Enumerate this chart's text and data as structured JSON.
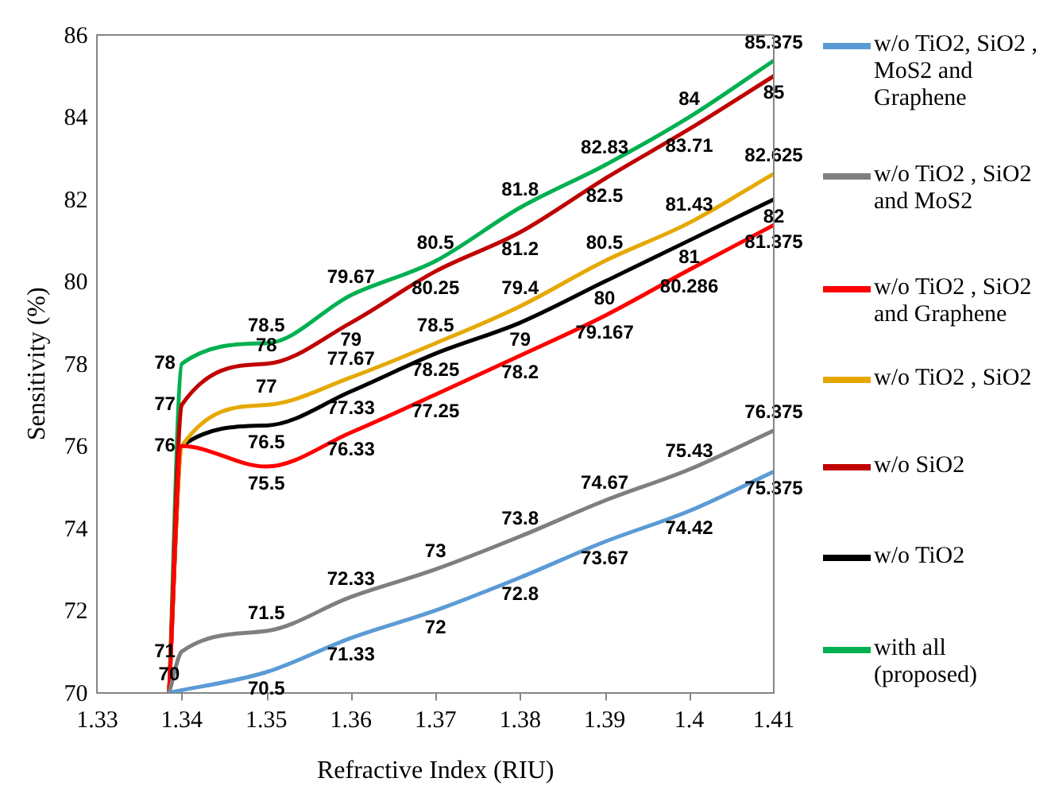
{
  "chart_data": {
    "type": "line",
    "xlabel": "Refractive Index (RIU)",
    "ylabel": "Sensitivity (%)",
    "xlim": [
      1.33,
      1.41
    ],
    "xticks": [
      1.33,
      1.34,
      1.35,
      1.36,
      1.37,
      1.38,
      1.39,
      1.4,
      1.41
    ],
    "ylim": [
      70,
      86
    ],
    "yticks": [
      70,
      72,
      74,
      76,
      78,
      80,
      82,
      84,
      86
    ],
    "grid": false,
    "legend": "right",
    "marker": "none",
    "line_style": "solid",
    "series": [
      {
        "name": "w/o TiO2, SiO2 , MoS2 and Graphene",
        "color": "#5b9bd5",
        "x": [
          1.3385,
          1.35,
          1.36,
          1.37,
          1.38,
          1.39,
          1.4,
          1.41
        ],
        "values": [
          70,
          70.5,
          71.33,
          72,
          72.8,
          73.67,
          74.42,
          75.375
        ],
        "value_labels": [
          "70",
          "70.5",
          "71.33",
          "72",
          "72.8",
          "73.67",
          "74.42",
          "75.375"
        ]
      },
      {
        "name": "w/o TiO2 , SiO2 and MoS2",
        "color": "#7f7f7f",
        "x": [
          1.3385,
          1.34,
          1.35,
          1.36,
          1.37,
          1.38,
          1.39,
          1.4,
          1.41
        ],
        "values": [
          70,
          71,
          71.5,
          72.33,
          73,
          73.8,
          74.67,
          75.43,
          76.375
        ],
        "value_labels": [
          null,
          "71",
          "71.5",
          "72.33",
          "73",
          "73.8",
          "74.67",
          "75.43",
          "76.375"
        ]
      },
      {
        "name": "w/o TiO2 , SiO2 and Graphene",
        "color": "#ff0000",
        "x": [
          1.3385,
          1.34,
          1.35,
          1.36,
          1.37,
          1.38,
          1.39,
          1.4,
          1.41
        ],
        "values": [
          70,
          76,
          75.5,
          76.33,
          77.25,
          78.2,
          79.167,
          80.286,
          81.375
        ],
        "value_labels": [
          null,
          null,
          "75.5",
          "76.33",
          "77.25",
          "78.2",
          "79.167",
          "80.286",
          "81.375"
        ]
      },
      {
        "name": "w/o TiO2 , SiO2",
        "color": "#e6a800",
        "x": [
          1.3385,
          1.34,
          1.35,
          1.36,
          1.37,
          1.38,
          1.39,
          1.4,
          1.41
        ],
        "values": [
          70,
          76,
          77,
          77.67,
          78.5,
          79.4,
          80.5,
          81.43,
          82.625
        ],
        "value_labels": [
          null,
          null,
          "77",
          "77.67",
          "78.5",
          "79.4",
          "80.5",
          "81.43",
          "82.625"
        ]
      },
      {
        "name": "w/o SiO2",
        "color": "#c00000",
        "x": [
          1.3385,
          1.34,
          1.35,
          1.36,
          1.37,
          1.38,
          1.39,
          1.4,
          1.41
        ],
        "values": [
          70,
          77,
          78,
          79,
          80.25,
          81.2,
          82.5,
          83.71,
          85
        ],
        "value_labels": [
          null,
          "77",
          "78",
          "79",
          "80.25",
          "81.2",
          "82.5",
          "83.71",
          "85"
        ]
      },
      {
        "name": "w/o TiO2",
        "color": "#000000",
        "x": [
          1.3385,
          1.34,
          1.35,
          1.36,
          1.37,
          1.38,
          1.39,
          1.4,
          1.41
        ],
        "values": [
          70,
          76,
          76.5,
          77.33,
          78.25,
          79,
          80,
          81,
          82
        ],
        "value_labels": [
          null,
          "76",
          "76.5",
          "77.33",
          "78.25",
          "79",
          "80",
          "81",
          "82"
        ]
      },
      {
        "name": "with all (proposed)",
        "color": "#00b050",
        "x": [
          1.3385,
          1.34,
          1.35,
          1.36,
          1.37,
          1.38,
          1.39,
          1.4,
          1.41
        ],
        "values": [
          70,
          78,
          78.5,
          79.67,
          80.5,
          81.8,
          82.83,
          84,
          85.375
        ],
        "value_labels": [
          null,
          "78",
          "78.5",
          "79.67",
          "80.5",
          "81.8",
          "82.83",
          "84",
          "85.375"
        ]
      }
    ]
  }
}
